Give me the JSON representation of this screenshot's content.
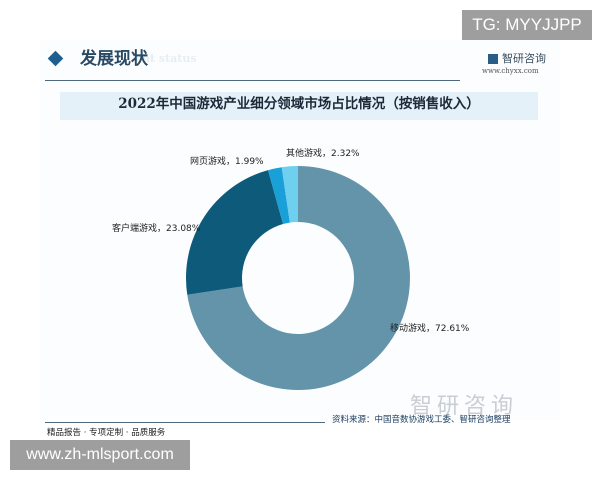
{
  "header": {
    "section_title": "发展现状",
    "section_subtitle": "ent status",
    "brand": "智研咨询",
    "brand_url": "www.chyxx.com"
  },
  "overlay": {
    "tg": "TG: MYYJJPP",
    "site": "www.zh-mlsport.com"
  },
  "footer": {
    "source": "资料来源：中国音数协游戏工委、智研咨询整理",
    "slogan": "精品报告 · 专项定制 · 品质服务",
    "watermark": "智研咨询"
  },
  "chart_data": {
    "type": "pie",
    "donut": true,
    "title": "2022年中国游戏产业细分领域市场占比情况（按销售收入）",
    "unit": "%",
    "slices": [
      {
        "name": "移动游戏",
        "value": 72.61,
        "label": "移动游戏，72.61%",
        "color": "#6494aa"
      },
      {
        "name": "客户端游戏",
        "value": 23.08,
        "label": "客户端游戏，23.08%",
        "color": "#0e5a7a"
      },
      {
        "name": "网页游戏",
        "value": 1.99,
        "label": "网页游戏，1.99%",
        "color": "#1aa0d8"
      },
      {
        "name": "其他游戏",
        "value": 2.32,
        "label": "其他游戏，2.32%",
        "color": "#6fcfee"
      }
    ]
  }
}
